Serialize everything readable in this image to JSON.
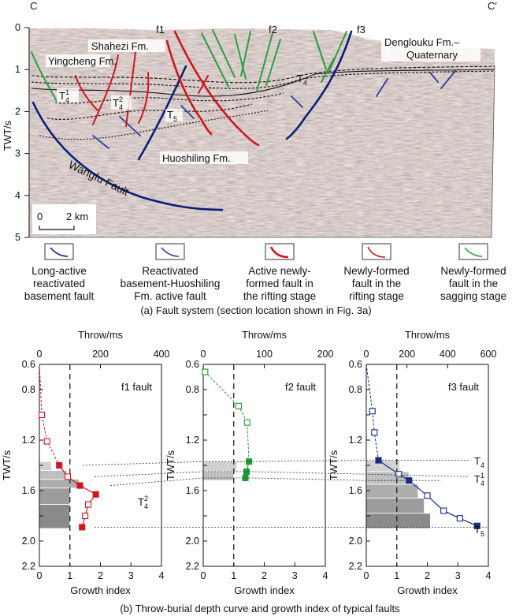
{
  "section": {
    "left_end": "C",
    "right_end": "C′",
    "yaxis_label": "TWT/s",
    "yticks": [
      "0",
      "1",
      "2",
      "3",
      "4",
      "5"
    ],
    "scale_bar": {
      "left": "0",
      "right": "2 km"
    },
    "fault_labels": [
      "f1",
      "f2",
      "f3"
    ],
    "formation_labels": [
      "Shahezi Fm.",
      "Yingcheng Fm.",
      "Denglouku Fm.–",
      "Quaternary",
      "Huoshiling Fm.",
      "Wangfu Fault"
    ],
    "horizon_labels": {
      "t4": "T",
      "t4_sub": "4",
      "t41": "T",
      "t41_sub": "4",
      "t41_sup": "1",
      "t42": "T",
      "t42_sub": "4",
      "t42_sup": "2",
      "t5": "T",
      "t5_sub": "5"
    },
    "colors": {
      "basement": "#0a1f7a",
      "reactivated": "#2d3e9e",
      "active_rift": "#d0161f",
      "new_rift": "#d0161f",
      "sag": "#2aa043",
      "seismic_bg": "#cdbfb5"
    }
  },
  "legend": [
    {
      "line1": "Long-active",
      "line2": "reactivated",
      "line3": "basement fault",
      "color": "#0a1f7a"
    },
    {
      "line1": "Reactivated",
      "line2": "basement-Huoshiling",
      "line3": "Fm. active fault",
      "color": "#2d3e9e"
    },
    {
      "line1": "Active newly-",
      "line2": "formed fault in",
      "line3": "the rifting stage",
      "color": "#d0161f"
    },
    {
      "line1": "Newly-formed",
      "line2": "fault in the",
      "line3": "rifting stage",
      "color": "#d0161f"
    },
    {
      "line1": "Newly-formed",
      "line2": "fault in the",
      "line3": "sagging stage",
      "color": "#2aa043"
    }
  ],
  "caption_a": "(a) Fault system (section location shown in Fig. 3a)",
  "caption_b": "(b) Throw-burial depth curve and growth index of typical faults",
  "panels_b": {
    "twt_label": "TWT/s",
    "throw_label": "Throw/ms",
    "growth_label": "Growth index",
    "twt_ticks": [
      "0.6",
      "0.8",
      "1.2",
      "1.6",
      "2.0",
      "2.2"
    ],
    "growth_ticks": [
      "0",
      "1",
      "2",
      "3",
      "4"
    ],
    "horizon_right_labels": {
      "t4": "T",
      "t4_sub": "4",
      "t41": "T",
      "t41_sub": "4",
      "t41_sup": "1",
      "t5": "T",
      "t5_sub": "5"
    }
  },
  "chart_data": [
    {
      "type": "line",
      "title": "f1 fault",
      "color": "#d0161f",
      "ylabel": "TWT/s",
      "xlabel_top": "Throw/ms",
      "xlabel_bottom": "Growth index",
      "ylim": [
        0.6,
        2.2
      ],
      "throw_xlim": [
        0,
        400
      ],
      "throw_ticks": [
        "0",
        "200",
        "400"
      ],
      "growth_xlim": [
        0,
        4
      ],
      "growth_threshold": 1,
      "horizon_label": {
        "base": "T",
        "sub": "4",
        "sup": "2"
      },
      "throw_profile": [
        {
          "throw": 8,
          "twt": 1.0,
          "filled": false
        },
        {
          "throw": 25,
          "twt": 1.21,
          "filled": false
        },
        {
          "throw": 65,
          "twt": 1.4,
          "filled": true
        },
        {
          "throw": 93,
          "twt": 1.49,
          "filled": false
        },
        {
          "throw": 133,
          "twt": 1.56,
          "filled": true
        },
        {
          "throw": 185,
          "twt": 1.63,
          "filled": true
        },
        {
          "throw": 160,
          "twt": 1.71,
          "filled": false
        },
        {
          "throw": 150,
          "twt": 1.8,
          "filled": false
        },
        {
          "throw": 140,
          "twt": 1.89,
          "filled": true
        }
      ],
      "growth_bars": [
        {
          "top": 1.37,
          "bottom": 1.44,
          "value": 0.4
        },
        {
          "top": 1.44,
          "bottom": 1.51,
          "value": 0.9
        },
        {
          "top": 1.51,
          "bottom": 1.58,
          "value": 1.3
        },
        {
          "top": 1.58,
          "bottom": 1.71,
          "value": 1.0
        },
        {
          "top": 1.71,
          "bottom": 1.9,
          "value": 1.0
        }
      ]
    },
    {
      "type": "line",
      "title": "f2 fault",
      "color": "#1f9a3a",
      "ylabel": "TWT/s",
      "xlabel_top": "Throw/ms",
      "xlabel_bottom": "Growth index",
      "ylim": [
        0.6,
        2.2
      ],
      "throw_xlim": [
        0,
        200
      ],
      "throw_ticks": [
        "0",
        "100",
        "200"
      ],
      "growth_xlim": [
        0,
        4
      ],
      "growth_threshold": 1,
      "throw_profile": [
        {
          "throw": 3,
          "twt": 0.66,
          "filled": false
        },
        {
          "throw": 58,
          "twt": 0.93,
          "filled": false
        },
        {
          "throw": 72,
          "twt": 1.06,
          "filled": false
        },
        {
          "throw": 75,
          "twt": 1.37,
          "filled": true
        },
        {
          "throw": 71,
          "twt": 1.45,
          "filled": true
        },
        {
          "throw": 69,
          "twt": 1.5,
          "filled": true
        }
      ],
      "growth_bars": [
        {
          "top": 1.37,
          "bottom": 1.45,
          "value": 1.1
        },
        {
          "top": 1.45,
          "bottom": 1.52,
          "value": 1.0
        }
      ]
    },
    {
      "type": "line",
      "title": "f3 fault",
      "color": "#142a86",
      "ylabel": "TWT/s",
      "xlabel_top": "Throw/ms",
      "xlabel_bottom": "Growth index",
      "ylim": [
        0.6,
        2.2
      ],
      "throw_xlim": [
        0,
        600
      ],
      "throw_ticks": [
        "0",
        "200",
        "400",
        "600"
      ],
      "growth_xlim": [
        0,
        4
      ],
      "growth_threshold": 1,
      "throw_profile": [
        {
          "throw": 30,
          "twt": 0.97,
          "filled": false
        },
        {
          "throw": 40,
          "twt": 1.14,
          "filled": false
        },
        {
          "throw": 60,
          "twt": 1.36,
          "filled": true
        },
        {
          "throw": 160,
          "twt": 1.47,
          "filled": false
        },
        {
          "throw": 210,
          "twt": 1.52,
          "filled": true
        },
        {
          "throw": 300,
          "twt": 1.64,
          "filled": false
        },
        {
          "throw": 380,
          "twt": 1.76,
          "filled": false
        },
        {
          "throw": 460,
          "twt": 1.82,
          "filled": false
        },
        {
          "throw": 545,
          "twt": 1.88,
          "filled": true
        }
      ],
      "growth_bars": [
        {
          "top": 1.36,
          "bottom": 1.45,
          "value": 1.1
        },
        {
          "top": 1.45,
          "bottom": 1.55,
          "value": 1.4
        },
        {
          "top": 1.55,
          "bottom": 1.66,
          "value": 1.7
        },
        {
          "top": 1.66,
          "bottom": 1.78,
          "value": 1.9
        },
        {
          "top": 1.78,
          "bottom": 1.9,
          "value": 2.1
        }
      ]
    }
  ]
}
